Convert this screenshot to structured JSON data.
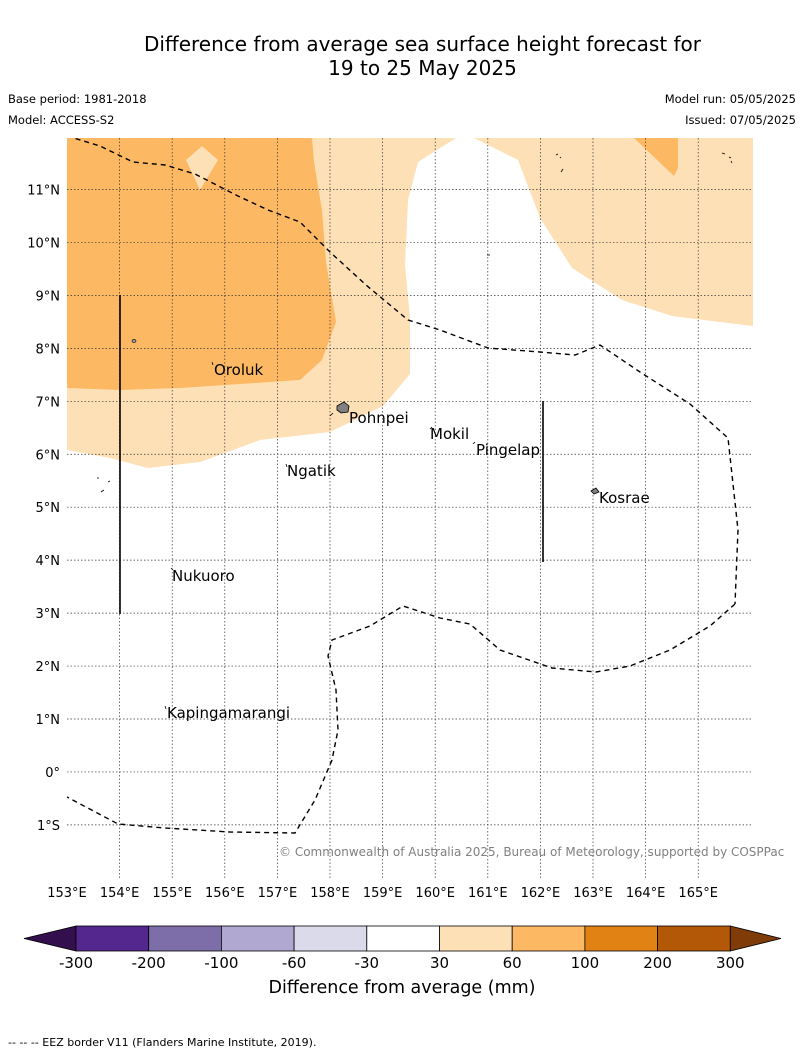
{
  "header": {
    "title_line1": "Difference from average sea surface height forecast for",
    "title_line2": "19 to 25 May 2025",
    "base_period": "Base period: 1981-2018",
    "model": "Model: ACCESS-S2",
    "model_run": "Model run: 05/05/2025",
    "issued": "Issued: 07/05/2025"
  },
  "map": {
    "lat_labels": [
      "11°N",
      "10°N",
      "9°N",
      "8°N",
      "7°N",
      "6°N",
      "5°N",
      "4°N",
      "3°N",
      "2°N",
      "1°N",
      "0°",
      "1°S"
    ],
    "lon_labels": [
      "153°E",
      "154°E",
      "155°E",
      "156°E",
      "157°E",
      "158°E",
      "159°E",
      "160°E",
      "161°E",
      "162°E",
      "163°E",
      "164°E",
      "165°E"
    ],
    "places": [
      "Oroluk",
      "Pohnpei",
      "Mokil",
      "Pingelap",
      "Ngatik",
      "Kosrae",
      "Nukuoro",
      "Kapingamarangi"
    ],
    "copyright": "© Commonwealth of Australia 2025, Bureau of Meteorology, supported by COSPPac"
  },
  "colorbar": {
    "labels": [
      "-300",
      "-200",
      "-100",
      "-60",
      "-30",
      "30",
      "60",
      "100",
      "200",
      "300"
    ],
    "colors": [
      "#33104d",
      "#54278f",
      "#7d6ea9",
      "#b0a8d0",
      "#dadaeb",
      "#ffffff",
      "#fee0b6",
      "#fdb863",
      "#e08214",
      "#b35806",
      "#7f3b08"
    ],
    "title": "Difference from average (mm)"
  },
  "footer": {
    "eez_note": "--  --  -- EEZ border V11 (Flanders Marine Institute, 2019)."
  }
}
